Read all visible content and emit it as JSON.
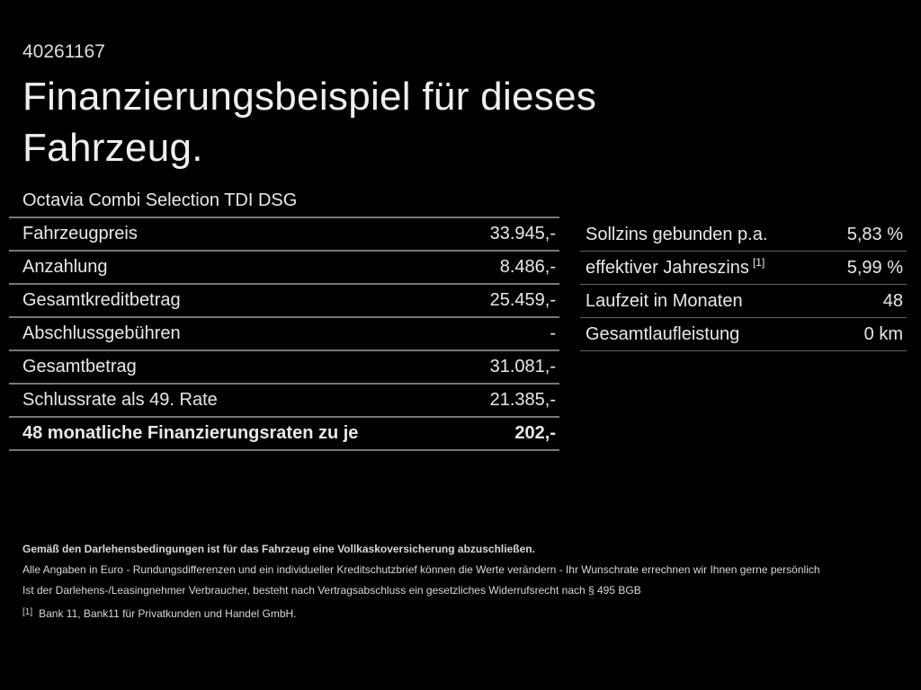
{
  "page": {
    "vehicle_id": "40261167"
  },
  "header": {
    "title_line1": "Finanzierungsbeispiel für dieses",
    "title_line2": "Fahrzeug."
  },
  "vehicle": {
    "model": "Octavia Combi Selection TDI DSG"
  },
  "finance": {
    "left_rows": [
      {
        "label": "Fahrzeugpreis",
        "value": "33.945,-"
      },
      {
        "label": "Anzahlung",
        "value": "8.486,-"
      },
      {
        "label": "Gesamtkreditbetrag",
        "value": "25.459,-"
      },
      {
        "label": "Abschlussgebühren",
        "value": "-"
      },
      {
        "label": "Gesamtbetrag",
        "value": "31.081,-"
      },
      {
        "label": "Schlussrate als 49. Rate",
        "value": "21.385,-"
      },
      {
        "label": "48 monatliche Finanzierungsraten zu je",
        "value": "202,-"
      }
    ],
    "right_rows": [
      {
        "label": "Sollzins gebunden p.a.",
        "sup": "",
        "value": "5,83 %"
      },
      {
        "label": "effektiver Jahreszins",
        "sup": "[1]",
        "value": "5,99 %"
      },
      {
        "label": "Laufzeit in Monaten",
        "sup": "",
        "value": "48"
      },
      {
        "label": "Gesamtlaufleistung",
        "sup": "",
        "value": "0 km"
      }
    ]
  },
  "footer": {
    "insurance_note": "Gemäß den Darlehensbedingungen ist für das Fahrzeug eine Vollkaskoversicherung abzuschließen.",
    "disclaimer_line1": "Alle Angaben in Euro - Rundungsdifferenzen und ein individueller Kreditschutzbrief können die Werte verändern - Ihr Wunschrate errechnen wir Ihnen gerne persönlich",
    "disclaimer_line2": "Ist der Darlehens-/Leasingnehmer Verbraucher, besteht nach Vertragsabschluss ein gesetzliches Widerrufsrecht nach § 495 BGB",
    "footnote_marker": "[1]",
    "footnote_text": "Bank 11, Bank11 für Privatkunden und Handel GmbH."
  },
  "colors": {
    "background": "#000000",
    "text": "#e8e8e8",
    "divider_left": "#787878",
    "divider_right": "#646464"
  }
}
